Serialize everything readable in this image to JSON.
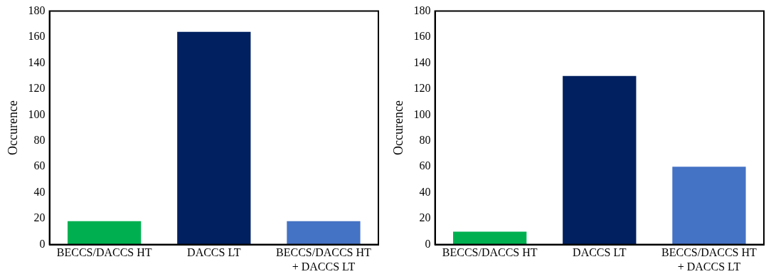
{
  "chart_data": [
    {
      "type": "bar",
      "ylabel": "Occurence",
      "categories": [
        "BECCS/DACCS HT",
        "DACCS LT",
        "BECCS/DACCS HT + DACCS LT"
      ],
      "values": [
        18,
        164,
        18
      ],
      "colors": [
        "#00b050",
        "#002060",
        "#4472c4"
      ],
      "ylim": [
        0,
        180
      ],
      "yticks": [
        0,
        20,
        40,
        60,
        80,
        100,
        120,
        140,
        160,
        180
      ],
      "grid": false,
      "legend": false
    },
    {
      "type": "bar",
      "ylabel": "Occurence",
      "categories": [
        "BECCS/DACCS HT",
        "DACCS LT",
        "BECCS/DACCS HT + DACCS LT"
      ],
      "values": [
        10,
        130,
        60
      ],
      "colors": [
        "#00b050",
        "#002060",
        "#4472c4"
      ],
      "ylim": [
        0,
        180
      ],
      "yticks": [
        0,
        20,
        40,
        60,
        80,
        100,
        120,
        140,
        160,
        180
      ],
      "grid": false,
      "legend": false
    }
  ]
}
